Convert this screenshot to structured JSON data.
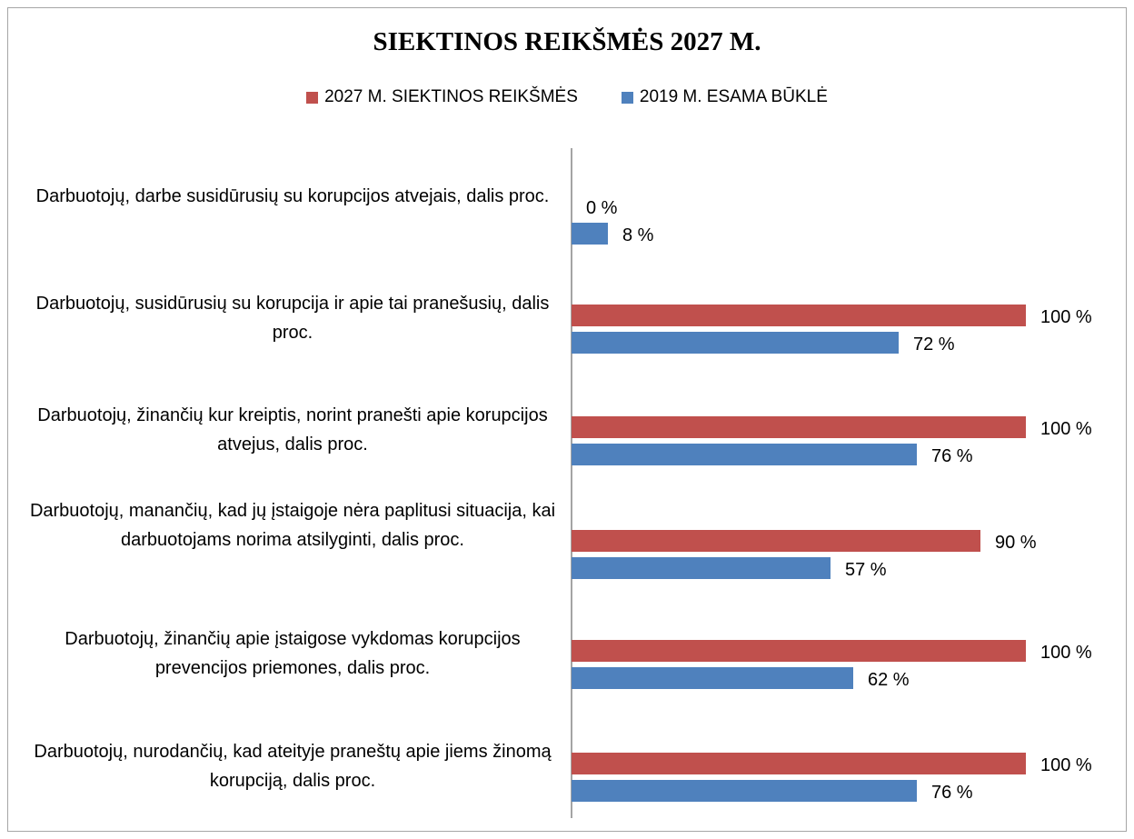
{
  "chart_data": {
    "type": "bar",
    "orientation": "horizontal",
    "title": "SIEKTINOS REIKŠMĖS 2027 M.",
    "legend_position": "top",
    "grid": false,
    "xlim": [
      0,
      100
    ],
    "categories": [
      "Darbuotojų, darbe susidūrusių su korupcijos atvejais, dalis proc.",
      "Darbuotojų, susidūrusių su korupcija ir apie tai pranešusių, dalis proc.",
      "Darbuotojų, žinančių kur kreiptis, norint pranešti apie korupcijos atvejus, dalis proc.",
      "Darbuotojų, manančių, kad jų įstaigoje nėra paplitusi situacija, kai darbuotojams norima atsilyginti, dalis proc.",
      "Darbuotojų, žinančių apie įstaigose vykdomas korupcijos prevencijos priemones, dalis proc.",
      "Darbuotojų, nurodančių, kad ateityje praneštų apie jiems žinomą korupciją, dalis proc."
    ],
    "series": [
      {
        "name": "2027 M. SIEKTINOS REIKŠMĖS",
        "color": "#c0504d",
        "values": [
          0,
          100,
          100,
          90,
          100,
          100
        ],
        "labels": [
          "0 %",
          "100 %",
          "100 %",
          "90 %",
          "100 %",
          "100 %"
        ]
      },
      {
        "name": "2019 M. ESAMA BŪKLĖ",
        "color": "#4f81bd",
        "values": [
          8,
          72,
          76,
          57,
          62,
          76
        ],
        "labels": [
          "8 %",
          "72 %",
          "76 %",
          "57 %",
          "62 %",
          "76 %"
        ]
      }
    ]
  }
}
